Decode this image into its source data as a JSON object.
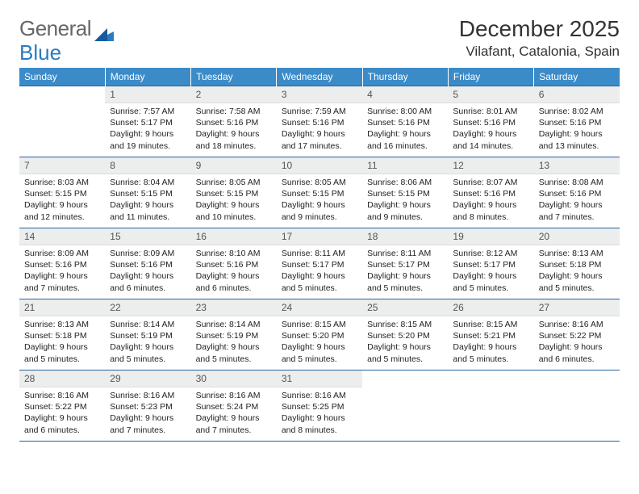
{
  "logo": {
    "text1": "General",
    "text2": "Blue"
  },
  "title": "December 2025",
  "location": "Vilafant, Catalonia, Spain",
  "colors": {
    "header_bg": "#3b8bc8",
    "header_text": "#ffffff",
    "daynum_bg": "#eceded",
    "border": "#2664a0",
    "logo_blue": "#2b7bbf"
  },
  "weekdays": [
    "Sunday",
    "Monday",
    "Tuesday",
    "Wednesday",
    "Thursday",
    "Friday",
    "Saturday"
  ],
  "days": [
    {
      "n": "",
      "sr": "",
      "ss": "",
      "dl": ""
    },
    {
      "n": "1",
      "sr": "Sunrise: 7:57 AM",
      "ss": "Sunset: 5:17 PM",
      "dl": "Daylight: 9 hours and 19 minutes."
    },
    {
      "n": "2",
      "sr": "Sunrise: 7:58 AM",
      "ss": "Sunset: 5:16 PM",
      "dl": "Daylight: 9 hours and 18 minutes."
    },
    {
      "n": "3",
      "sr": "Sunrise: 7:59 AM",
      "ss": "Sunset: 5:16 PM",
      "dl": "Daylight: 9 hours and 17 minutes."
    },
    {
      "n": "4",
      "sr": "Sunrise: 8:00 AM",
      "ss": "Sunset: 5:16 PM",
      "dl": "Daylight: 9 hours and 16 minutes."
    },
    {
      "n": "5",
      "sr": "Sunrise: 8:01 AM",
      "ss": "Sunset: 5:16 PM",
      "dl": "Daylight: 9 hours and 14 minutes."
    },
    {
      "n": "6",
      "sr": "Sunrise: 8:02 AM",
      "ss": "Sunset: 5:16 PM",
      "dl": "Daylight: 9 hours and 13 minutes."
    },
    {
      "n": "7",
      "sr": "Sunrise: 8:03 AM",
      "ss": "Sunset: 5:15 PM",
      "dl": "Daylight: 9 hours and 12 minutes."
    },
    {
      "n": "8",
      "sr": "Sunrise: 8:04 AM",
      "ss": "Sunset: 5:15 PM",
      "dl": "Daylight: 9 hours and 11 minutes."
    },
    {
      "n": "9",
      "sr": "Sunrise: 8:05 AM",
      "ss": "Sunset: 5:15 PM",
      "dl": "Daylight: 9 hours and 10 minutes."
    },
    {
      "n": "10",
      "sr": "Sunrise: 8:05 AM",
      "ss": "Sunset: 5:15 PM",
      "dl": "Daylight: 9 hours and 9 minutes."
    },
    {
      "n": "11",
      "sr": "Sunrise: 8:06 AM",
      "ss": "Sunset: 5:15 PM",
      "dl": "Daylight: 9 hours and 9 minutes."
    },
    {
      "n": "12",
      "sr": "Sunrise: 8:07 AM",
      "ss": "Sunset: 5:16 PM",
      "dl": "Daylight: 9 hours and 8 minutes."
    },
    {
      "n": "13",
      "sr": "Sunrise: 8:08 AM",
      "ss": "Sunset: 5:16 PM",
      "dl": "Daylight: 9 hours and 7 minutes."
    },
    {
      "n": "14",
      "sr": "Sunrise: 8:09 AM",
      "ss": "Sunset: 5:16 PM",
      "dl": "Daylight: 9 hours and 7 minutes."
    },
    {
      "n": "15",
      "sr": "Sunrise: 8:09 AM",
      "ss": "Sunset: 5:16 PM",
      "dl": "Daylight: 9 hours and 6 minutes."
    },
    {
      "n": "16",
      "sr": "Sunrise: 8:10 AM",
      "ss": "Sunset: 5:16 PM",
      "dl": "Daylight: 9 hours and 6 minutes."
    },
    {
      "n": "17",
      "sr": "Sunrise: 8:11 AM",
      "ss": "Sunset: 5:17 PM",
      "dl": "Daylight: 9 hours and 5 minutes."
    },
    {
      "n": "18",
      "sr": "Sunrise: 8:11 AM",
      "ss": "Sunset: 5:17 PM",
      "dl": "Daylight: 9 hours and 5 minutes."
    },
    {
      "n": "19",
      "sr": "Sunrise: 8:12 AM",
      "ss": "Sunset: 5:17 PM",
      "dl": "Daylight: 9 hours and 5 minutes."
    },
    {
      "n": "20",
      "sr": "Sunrise: 8:13 AM",
      "ss": "Sunset: 5:18 PM",
      "dl": "Daylight: 9 hours and 5 minutes."
    },
    {
      "n": "21",
      "sr": "Sunrise: 8:13 AM",
      "ss": "Sunset: 5:18 PM",
      "dl": "Daylight: 9 hours and 5 minutes."
    },
    {
      "n": "22",
      "sr": "Sunrise: 8:14 AM",
      "ss": "Sunset: 5:19 PM",
      "dl": "Daylight: 9 hours and 5 minutes."
    },
    {
      "n": "23",
      "sr": "Sunrise: 8:14 AM",
      "ss": "Sunset: 5:19 PM",
      "dl": "Daylight: 9 hours and 5 minutes."
    },
    {
      "n": "24",
      "sr": "Sunrise: 8:15 AM",
      "ss": "Sunset: 5:20 PM",
      "dl": "Daylight: 9 hours and 5 minutes."
    },
    {
      "n": "25",
      "sr": "Sunrise: 8:15 AM",
      "ss": "Sunset: 5:20 PM",
      "dl": "Daylight: 9 hours and 5 minutes."
    },
    {
      "n": "26",
      "sr": "Sunrise: 8:15 AM",
      "ss": "Sunset: 5:21 PM",
      "dl": "Daylight: 9 hours and 5 minutes."
    },
    {
      "n": "27",
      "sr": "Sunrise: 8:16 AM",
      "ss": "Sunset: 5:22 PM",
      "dl": "Daylight: 9 hours and 6 minutes."
    },
    {
      "n": "28",
      "sr": "Sunrise: 8:16 AM",
      "ss": "Sunset: 5:22 PM",
      "dl": "Daylight: 9 hours and 6 minutes."
    },
    {
      "n": "29",
      "sr": "Sunrise: 8:16 AM",
      "ss": "Sunset: 5:23 PM",
      "dl": "Daylight: 9 hours and 7 minutes."
    },
    {
      "n": "30",
      "sr": "Sunrise: 8:16 AM",
      "ss": "Sunset: 5:24 PM",
      "dl": "Daylight: 9 hours and 7 minutes."
    },
    {
      "n": "31",
      "sr": "Sunrise: 8:16 AM",
      "ss": "Sunset: 5:25 PM",
      "dl": "Daylight: 9 hours and 8 minutes."
    },
    {
      "n": "",
      "sr": "",
      "ss": "",
      "dl": ""
    },
    {
      "n": "",
      "sr": "",
      "ss": "",
      "dl": ""
    },
    {
      "n": "",
      "sr": "",
      "ss": "",
      "dl": ""
    }
  ]
}
